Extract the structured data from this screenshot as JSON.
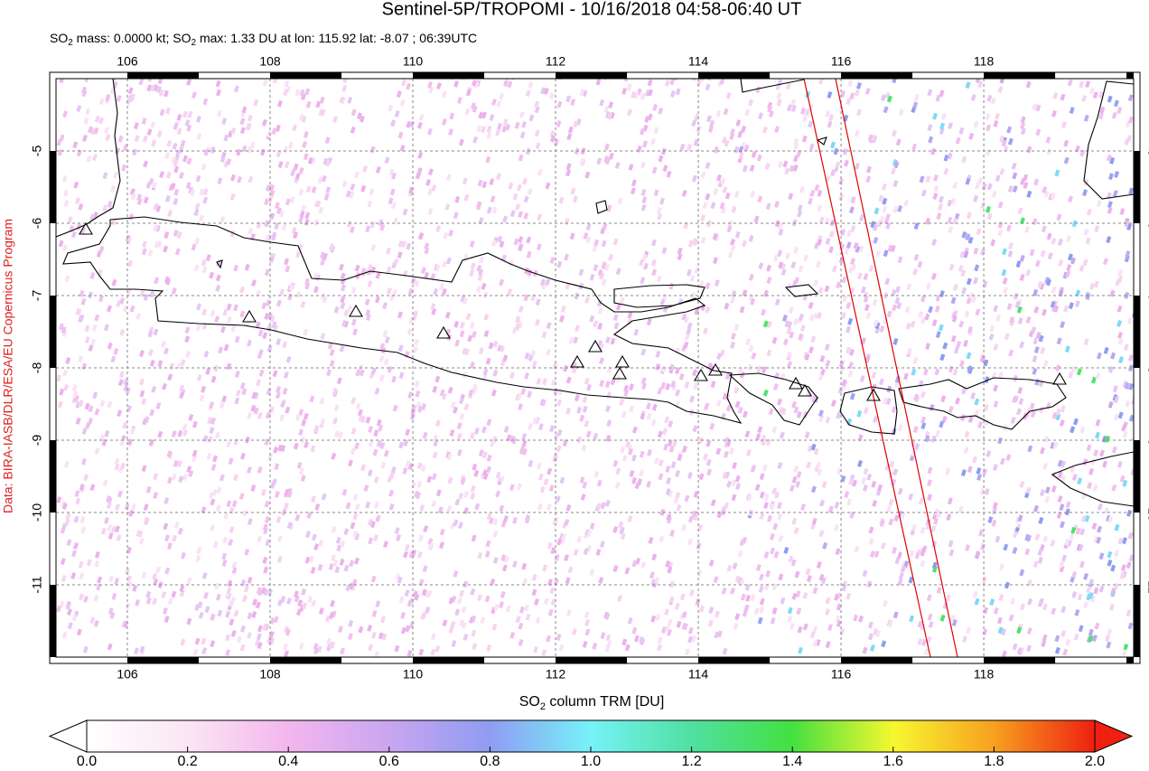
{
  "header": {
    "title": "Sentinel-5P/TROPOMI - 10/16/2018 04:58-06:40 UT",
    "subtitle": [
      "SO",
      "2",
      " mass: 0.0000 kt; SO",
      "2",
      " max: 1.33 DU at lon: 115.92 lat: -8.07 ; 06:39UTC"
    ]
  },
  "credit": "Data: BIRA-IASB/DLR/ESA/EU Copernicus Program",
  "map": {
    "xlim": [
      105,
      120.1
    ],
    "ylim": [
      -12,
      -4
    ],
    "xticks": [
      106,
      108,
      110,
      112,
      114,
      116,
      118
    ],
    "yticks": [
      -5,
      -6,
      -7,
      -8,
      -9,
      -10,
      -11
    ],
    "grid": true
  },
  "colorbar": {
    "label": [
      "SO",
      "2",
      " column TRM [DU]"
    ],
    "clim": [
      0,
      2
    ],
    "ticks": [
      {
        "value": 0,
        "label": "0.0"
      },
      {
        "value": 0.2,
        "label": "0.2"
      },
      {
        "value": 0.4,
        "label": "0.4"
      },
      {
        "value": 0.6,
        "label": "0.6"
      },
      {
        "value": 0.8,
        "label": "0.8"
      },
      {
        "value": 1,
        "label": "1.0"
      },
      {
        "value": 1.2,
        "label": "1.2"
      },
      {
        "value": 1.4,
        "label": "1.4"
      },
      {
        "value": 1.6,
        "label": "1.6"
      },
      {
        "value": 1.8,
        "label": "1.8"
      },
      {
        "value": 2,
        "label": "2.0"
      }
    ]
  }
}
